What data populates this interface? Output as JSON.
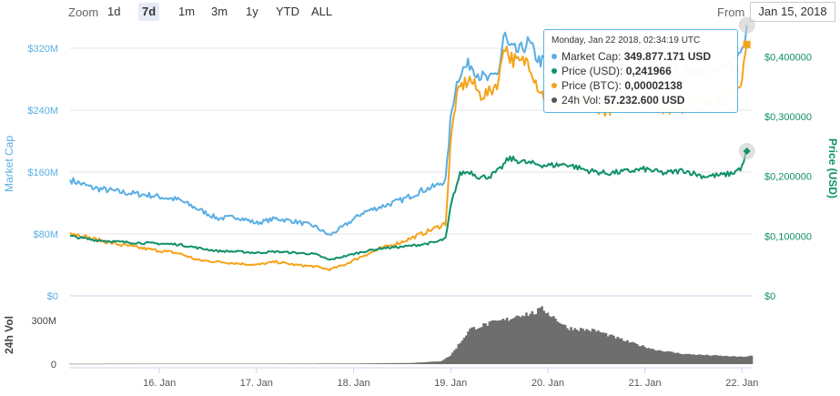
{
  "toolbar": {
    "zoom_label": "Zoom",
    "buttons": [
      "1d",
      "7d",
      "1m",
      "3m",
      "1y",
      "YTD",
      "ALL"
    ],
    "active": "7d",
    "from_label": "From",
    "from_value": "Jan 15, 2018"
  },
  "tooltip": {
    "header": "Monday, Jan 22 2018, 02:34:19 UTC",
    "rows": [
      {
        "label": "Market Cap",
        "value": "349.877.171 USD",
        "color": "#5aaee3"
      },
      {
        "label": "Price (USD)",
        "value": "0,241966",
        "color": "#10906b"
      },
      {
        "label": "Price (BTC)",
        "value": "0,00002138",
        "color": "#f5a31a"
      },
      {
        "label": "24h Vol",
        "value": "57.232.600 USD",
        "color": "#555555"
      }
    ]
  },
  "chart_data": {
    "type": "line",
    "x_ticks": [
      "16. Jan",
      "17. Jan",
      "18. Jan",
      "19. Jan",
      "20. Jan",
      "21. Jan",
      "22. Jan"
    ],
    "left_axis": {
      "title": "Market Cap",
      "ticks": [
        "$0",
        "$80M",
        "$160M",
        "$240M",
        "$320M"
      ],
      "ylim": [
        0,
        340000000
      ]
    },
    "right_axis": {
      "title": "Price (USD)",
      "ticks": [
        "$0",
        "$0,100000",
        "$0,200000",
        "$0,300000",
        "$0,400000"
      ],
      "ylim": [
        0,
        0.44
      ]
    },
    "volume_axis": {
      "title": "24h Vol",
      "ticks": [
        "0",
        "300M"
      ]
    },
    "colors": {
      "market_cap": "#5aaee3",
      "price_usd": "#10906b",
      "price_btc": "#f5a31a",
      "volume": "#6e6e6e"
    },
    "x_range": [
      15.08,
      22.1
    ],
    "series": [
      {
        "name": "Market Cap",
        "axis": "left",
        "x": [
          15.08,
          15.3,
          15.6,
          15.9,
          16.2,
          16.4,
          16.6,
          16.8,
          17.0,
          17.2,
          17.4,
          17.6,
          17.75,
          17.9,
          18.1,
          18.3,
          18.5,
          18.7,
          18.85,
          18.95,
          19.0,
          19.05,
          19.1,
          19.2,
          19.3,
          19.4,
          19.5,
          19.55,
          19.6,
          19.7,
          19.8,
          19.9,
          20.0,
          20.2,
          20.4,
          20.6,
          20.8,
          21.0,
          21.2,
          21.4,
          21.6,
          21.8,
          21.9,
          22.0,
          22.05
        ],
        "values": [
          150000000,
          140000000,
          134000000,
          130000000,
          124000000,
          112000000,
          100000000,
          102000000,
          94000000,
          100000000,
          96000000,
          90000000,
          78000000,
          90000000,
          108000000,
          116000000,
          124000000,
          136000000,
          142000000,
          150000000,
          230000000,
          270000000,
          290000000,
          300000000,
          285000000,
          278000000,
          292000000,
          340000000,
          320000000,
          315000000,
          328000000,
          305000000,
          300000000,
          302000000,
          300000000,
          292000000,
          295000000,
          300000000,
          290000000,
          288000000,
          294000000,
          290000000,
          300000000,
          320000000,
          350000000
        ]
      },
      {
        "name": "Price (USD)",
        "axis": "right",
        "x": [
          15.08,
          15.3,
          15.6,
          15.9,
          16.2,
          16.4,
          16.6,
          16.8,
          17.0,
          17.2,
          17.4,
          17.6,
          17.75,
          17.9,
          18.1,
          18.3,
          18.5,
          18.7,
          18.85,
          18.95,
          19.0,
          19.05,
          19.1,
          19.2,
          19.3,
          19.4,
          19.5,
          19.6,
          19.8,
          20.0,
          20.2,
          20.4,
          20.6,
          20.8,
          21.0,
          21.2,
          21.4,
          21.6,
          21.8,
          21.9,
          22.0,
          22.05
        ],
        "values": [
          0.1,
          0.094,
          0.09,
          0.088,
          0.086,
          0.08,
          0.075,
          0.074,
          0.072,
          0.074,
          0.072,
          0.07,
          0.06,
          0.066,
          0.074,
          0.08,
          0.082,
          0.086,
          0.09,
          0.096,
          0.15,
          0.18,
          0.205,
          0.208,
          0.198,
          0.2,
          0.21,
          0.23,
          0.222,
          0.218,
          0.22,
          0.21,
          0.205,
          0.208,
          0.212,
          0.205,
          0.21,
          0.2,
          0.202,
          0.205,
          0.215,
          0.242
        ]
      },
      {
        "name": "Price (BTC)",
        "axis": "left",
        "x": [
          15.08,
          15.3,
          15.6,
          15.9,
          16.2,
          16.4,
          16.6,
          16.8,
          17.0,
          17.2,
          17.4,
          17.6,
          17.75,
          17.9,
          18.1,
          18.3,
          18.5,
          18.7,
          18.85,
          18.95,
          19.0,
          19.05,
          19.1,
          19.2,
          19.3,
          19.4,
          19.5,
          19.55,
          19.6,
          19.7,
          19.8,
          19.9,
          20.0,
          20.2,
          20.4,
          20.6,
          20.8,
          21.0,
          21.2,
          21.4,
          21.6,
          21.8,
          21.9,
          22.0,
          22.05
        ],
        "values": [
          82000000,
          74000000,
          66000000,
          60000000,
          55000000,
          46000000,
          44000000,
          42000000,
          40000000,
          44000000,
          40000000,
          38000000,
          34000000,
          40000000,
          52000000,
          62000000,
          70000000,
          80000000,
          88000000,
          94000000,
          200000000,
          250000000,
          270000000,
          280000000,
          260000000,
          262000000,
          280000000,
          330000000,
          310000000,
          300000000,
          305000000,
          270000000,
          250000000,
          245000000,
          250000000,
          240000000,
          250000000,
          255000000,
          240000000,
          245000000,
          255000000,
          250000000,
          260000000,
          280000000,
          325000000
        ]
      }
    ],
    "volume": {
      "x": [
        15.08,
        16.0,
        17.0,
        18.0,
        18.6,
        18.9,
        19.0,
        19.2,
        19.4,
        19.6,
        19.7,
        19.85,
        19.95,
        20.05,
        20.2,
        20.5,
        20.8,
        21.1,
        21.4,
        21.7,
        22.0,
        22.1
      ],
      "values": [
        2000000,
        3000000,
        3000000,
        4000000,
        8000000,
        20000000,
        60000000,
        240000000,
        280000000,
        310000000,
        340000000,
        350000000,
        380000000,
        330000000,
        250000000,
        230000000,
        160000000,
        100000000,
        70000000,
        60000000,
        50000000,
        57000000
      ],
      "ylim": [
        0,
        420000000
      ]
    }
  }
}
